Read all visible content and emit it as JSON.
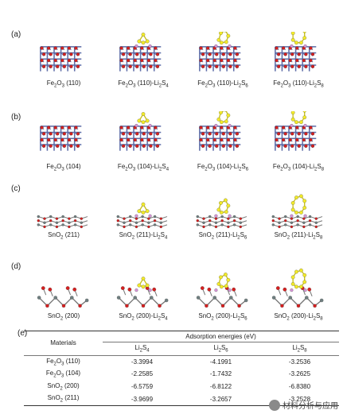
{
  "panels": [
    {
      "label": "(a)",
      "captions": [
        "Fe2O3 (110)",
        "Fe2O3 (110)-Li2S4",
        "Fe2O3 (110)-Li2S6",
        "Fe2O3 (110)-Li2S8"
      ]
    },
    {
      "label": "(b)",
      "captions": [
        "Fe2O3 (104)",
        "Fe2O3 (104)-Li2S4",
        "Fe2O3 (104)-Li2S6",
        "Fe2O3 (104)-Li2S8"
      ]
    },
    {
      "label": "(c)",
      "captions": [
        "SnO2 (211)",
        "SnO2 (211)-Li2S4",
        "SnO2 (211)-Li2S6",
        "SnO2 (211)-Li2S8"
      ]
    },
    {
      "label": "(d)",
      "captions": [
        "SnO2 (200)",
        "SnO2 (200)-Li2S4",
        "SnO2 (200)-Li2S6",
        "SnO2 (200)-Li2S8"
      ]
    }
  ],
  "table": {
    "label": "(e)",
    "header_materials": "Materials",
    "header_group": "Adsorption energies (eV)",
    "columns": [
      "Li2S4",
      "Li2S6",
      "Li2S8"
    ],
    "rows": [
      {
        "material": "Fe2O3 (110)",
        "values": [
          "-3.3994",
          "-4.1991",
          "-3.2536"
        ]
      },
      {
        "material": "Fe2O3 (104)",
        "values": [
          "-2.2585",
          "-1.7432",
          "-3.2625"
        ]
      },
      {
        "material": "SnO2 (200)",
        "values": [
          "-6.5759",
          "-6.8122",
          "-6.8380"
        ]
      },
      {
        "material": "SnO2 (211)",
        "values": [
          "-3.9699",
          "-3.2657",
          "-3.2528"
        ]
      }
    ]
  },
  "watermark": "材料分析与应用",
  "colors": {
    "fe": "#7b7fb8",
    "o": "#d61f1f",
    "sn": "#6f7f80",
    "s": "#f2ea2a",
    "li": "#d896d8",
    "bond": "#5e6da8"
  }
}
